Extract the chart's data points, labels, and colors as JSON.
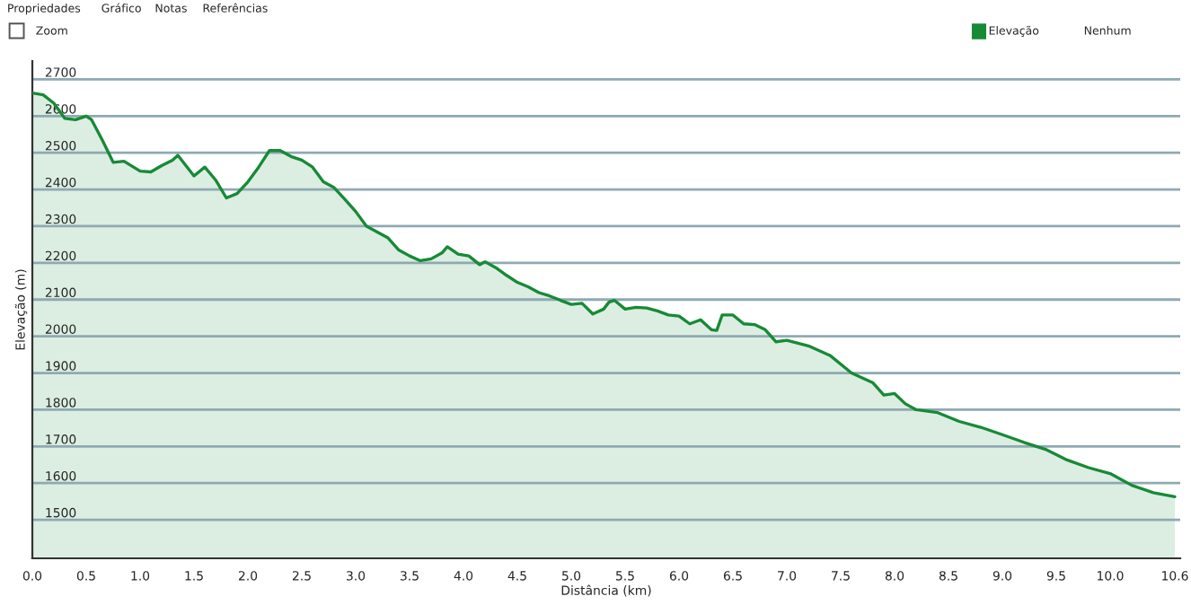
{
  "chart_data": {
    "type": "area",
    "xlabel": "Distância (km)",
    "ylabel": "Elevação (m)",
    "annotations": [
      "Propriedades",
      "Gráfico",
      "Notas",
      "Referências",
      "Zoom",
      "Elevação",
      "Nenhum"
    ],
    "xlim": [
      0,
      10.65
    ],
    "ylim": [
      1395,
      2750
    ],
    "xticks": [
      {
        "value": 0,
        "label": "0.0"
      },
      {
        "value": 0.5,
        "label": "0.5"
      },
      {
        "value": 1,
        "label": "1.0"
      },
      {
        "value": 1.5,
        "label": "1.5"
      },
      {
        "value": 2,
        "label": "2.0"
      },
      {
        "value": 2.5,
        "label": "2.5"
      },
      {
        "value": 3,
        "label": "3.0"
      },
      {
        "value": 3.5,
        "label": "3.5"
      },
      {
        "value": 4,
        "label": "4.0"
      },
      {
        "value": 4.5,
        "label": "4.5"
      },
      {
        "value": 5,
        "label": "5.0"
      },
      {
        "value": 5.5,
        "label": "5.5"
      },
      {
        "value": 6,
        "label": "6.0"
      },
      {
        "value": 6.5,
        "label": "6.5"
      },
      {
        "value": 7,
        "label": "7.0"
      },
      {
        "value": 7.5,
        "label": "7.5"
      },
      {
        "value": 8,
        "label": "8.0"
      },
      {
        "value": 8.5,
        "label": "8.5"
      },
      {
        "value": 9,
        "label": "9.0"
      },
      {
        "value": 9.5,
        "label": "9.5"
      },
      {
        "value": 10,
        "label": "10.0"
      },
      {
        "value": 10.6,
        "label": "10.6"
      }
    ],
    "yticks": [
      1500,
      1600,
      1700,
      1800,
      1900,
      2000,
      2100,
      2200,
      2300,
      2400,
      2500,
      2600,
      2700
    ],
    "grid": "y",
    "legend": false,
    "marker": "none",
    "line_style": "solid",
    "x": [
      0,
      0.1,
      0.2,
      0.3,
      0.4,
      0.5,
      0.55,
      0.65,
      0.75,
      0.85,
      1.0,
      1.1,
      1.2,
      1.3,
      1.35,
      1.5,
      1.6,
      1.7,
      1.8,
      1.9,
      2.0,
      2.1,
      2.2,
      2.3,
      2.4,
      2.5,
      2.6,
      2.7,
      2.8,
      2.9,
      3.0,
      3.1,
      3.2,
      3.3,
      3.4,
      3.5,
      3.6,
      3.7,
      3.8,
      3.85,
      3.95,
      4.05,
      4.15,
      4.2,
      4.3,
      4.4,
      4.5,
      4.6,
      4.7,
      4.8,
      4.9,
      5.0,
      5.1,
      5.2,
      5.3,
      5.35,
      5.4,
      5.5,
      5.6,
      5.7,
      5.8,
      5.9,
      6.0,
      6.1,
      6.2,
      6.3,
      6.35,
      6.4,
      6.5,
      6.6,
      6.7,
      6.8,
      6.9,
      7.0,
      7.2,
      7.4,
      7.6,
      7.8,
      7.9,
      8.0,
      8.1,
      8.2,
      8.4,
      8.6,
      8.8,
      9.0,
      9.2,
      9.4,
      9.6,
      9.8,
      10.0,
      10.2,
      10.4,
      10.6
    ],
    "series": [
      {
        "color": "#178a36",
        "values": [
          2663,
          2658,
          2635,
          2594,
          2590,
          2600,
          2590,
          2534,
          2474,
          2477,
          2450,
          2448,
          2465,
          2480,
          2493,
          2437,
          2461,
          2426,
          2377,
          2389,
          2421,
          2461,
          2506,
          2506,
          2490,
          2480,
          2461,
          2421,
          2405,
          2373,
          2340,
          2300,
          2284,
          2268,
          2235,
          2219,
          2206,
          2211,
          2227,
          2244,
          2224,
          2219,
          2195,
          2203,
          2187,
          2166,
          2147,
          2135,
          2119,
          2110,
          2098,
          2087,
          2090,
          2061,
          2074,
          2093,
          2098,
          2074,
          2079,
          2077,
          2069,
          2058,
          2055,
          2034,
          2045,
          2018,
          2016,
          2058,
          2058,
          2034,
          2032,
          2018,
          1985,
          1989,
          1974,
          1948,
          1900,
          1873,
          1840,
          1844,
          1816,
          1800,
          1792,
          1768,
          1752,
          1732,
          1711,
          1692,
          1663,
          1642,
          1626,
          1594,
          1574,
          1563
        ]
      }
    ]
  }
}
